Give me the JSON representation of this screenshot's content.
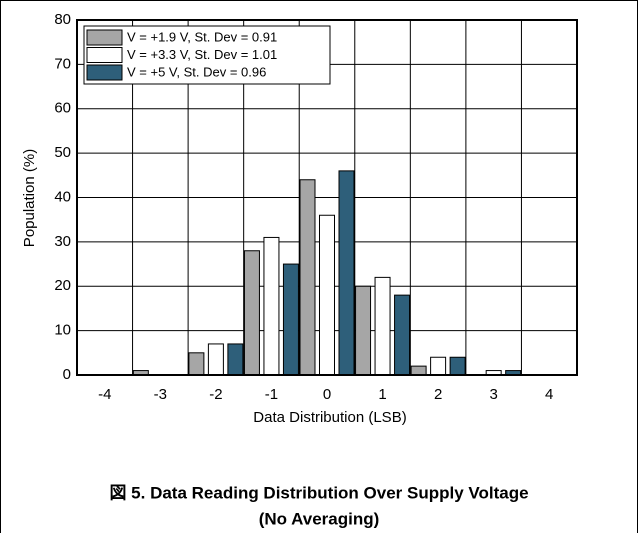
{
  "chart_data": {
    "type": "bar",
    "xlabel": "Data Distribution (LSB)",
    "ylabel": "Population (%)",
    "categories": [
      "-4",
      "-3",
      "-2",
      "-1",
      "0",
      "1",
      "2",
      "3",
      "4"
    ],
    "series": [
      {
        "name": "V = +1.9 V, St. Dev = 0.91",
        "color": "#a6a6a6",
        "values": [
          0,
          1,
          5,
          28,
          44,
          20,
          2,
          0,
          0
        ]
      },
      {
        "name": "V = +3.3 V, St. Dev = 1.01",
        "color": "#ffffff",
        "values": [
          0,
          0,
          7,
          31,
          36,
          22,
          4,
          1,
          0
        ]
      },
      {
        "name": "V = +5 V, St. Dev = 0.96",
        "color": "#2e5f7a",
        "values": [
          0,
          0,
          7,
          25,
          46,
          18,
          4,
          1,
          0
        ]
      }
    ],
    "ylim": [
      0,
      80
    ],
    "yticks": [
      0,
      10,
      20,
      30,
      40,
      50,
      60,
      70,
      80
    ],
    "grid": true,
    "legend": "upper-left"
  },
  "caption": [
    "図 5. Data Reading Distribution Over Supply Voltage",
    "(No Averaging)"
  ]
}
